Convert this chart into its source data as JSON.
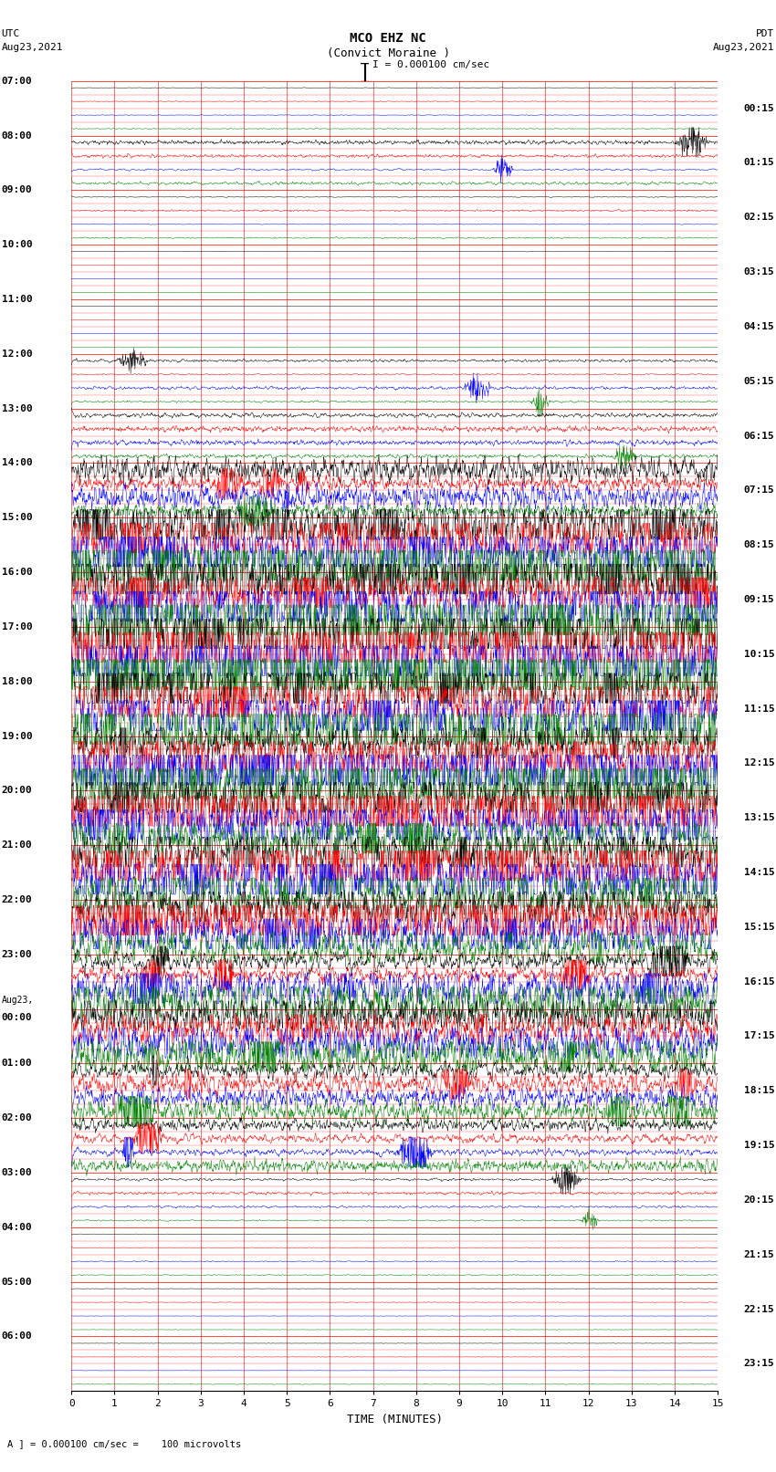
{
  "title_line1": "MCO EHZ NC",
  "title_line2": "(Convict Moraine )",
  "scale_text": "I = 0.000100 cm/sec",
  "utc_label": "UTC",
  "utc_date": "Aug23,2021",
  "pdt_label": "PDT",
  "pdt_date": "Aug23,2021",
  "xlabel": "TIME (MINUTES)",
  "footer_text": "A ] = 0.000100 cm/sec =    100 microvolts",
  "left_times": [
    "07:00",
    "08:00",
    "09:00",
    "10:00",
    "11:00",
    "12:00",
    "13:00",
    "14:00",
    "15:00",
    "16:00",
    "17:00",
    "18:00",
    "19:00",
    "20:00",
    "21:00",
    "22:00",
    "23:00",
    "Aug23,\n00:00",
    "01:00",
    "02:00",
    "03:00",
    "04:00",
    "05:00",
    "06:00"
  ],
  "right_times": [
    "00:15",
    "01:15",
    "02:15",
    "03:15",
    "04:15",
    "05:15",
    "06:15",
    "07:15",
    "08:15",
    "09:15",
    "10:15",
    "11:15",
    "12:15",
    "13:15",
    "14:15",
    "15:15",
    "16:15",
    "17:15",
    "18:15",
    "19:15",
    "20:15",
    "21:15",
    "22:15",
    "23:15"
  ],
  "n_trace_groups": 24,
  "traces_per_group": 4,
  "n_cols": 1800,
  "bg_color": "#ffffff",
  "grid_color": "#ff0000",
  "colors_cycle": [
    "black",
    "red",
    "blue",
    "green"
  ],
  "xmin": 0,
  "xmax": 15,
  "xticks": [
    0,
    1,
    2,
    3,
    4,
    5,
    6,
    7,
    8,
    9,
    10,
    11,
    12,
    13,
    14,
    15
  ],
  "amp_profile": [
    0.3,
    0.6,
    0.4,
    0.2,
    0.2,
    0.5,
    0.7,
    1.5,
    3.0,
    3.5,
    3.8,
    4.0,
    3.5,
    3.2,
    2.8,
    2.5,
    2.0,
    1.8,
    1.5,
    1.2,
    0.5,
    0.3,
    0.2,
    0.2
  ]
}
